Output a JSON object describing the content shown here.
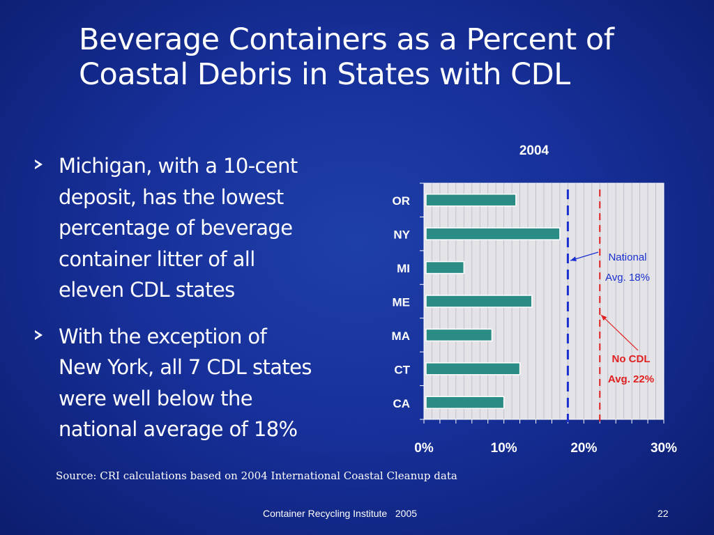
{
  "slide": {
    "title_lines": [
      "Beverage Containers as a Percent of",
      "Coastal Debris in States with CDL"
    ],
    "bullets": [
      {
        "lines": [
          "Michigan, with a 10-cent",
          "deposit, has the lowest",
          "percentage of beverage",
          "container litter of all",
          "eleven CDL states"
        ]
      },
      {
        "lines": [
          "With the exception of",
          "New York, all 7 CDL states",
          "were well below the",
          "national average of 18%"
        ]
      }
    ],
    "source": "Source: CRI calculations based on 2004 International Coastal Cleanup data",
    "footer": "Container Recycling Institute   2005",
    "page_number": "22"
  },
  "colors": {
    "bar_fill": "#2b8c86",
    "plot_bg": "#e3e3e8",
    "national_line": "#1a2fd0",
    "no_cdl_line": "#e02020",
    "national_text": "#1a2fd0",
    "no_cdl_text": "#e02020",
    "axis_text": "#ffffff"
  },
  "chart_data": {
    "type": "bar",
    "orientation": "horizontal",
    "title": "2004",
    "categories": [
      "OR",
      "NY",
      "MI",
      "ME",
      "MA",
      "CT",
      "CA"
    ],
    "values": [
      11.5,
      17,
      5,
      13.5,
      8.5,
      12,
      10
    ],
    "xlim": [
      0,
      30
    ],
    "x_ticks": [
      "0%",
      "10%",
      "20%",
      "30%"
    ],
    "x_tick_values": [
      0,
      10,
      20,
      30
    ],
    "grid": true,
    "reference_lines": [
      {
        "label_lines": [
          "National",
          "Avg. 18%"
        ],
        "value": 18,
        "style": "dashed"
      },
      {
        "label_lines": [
          "No CDL",
          "Avg. 22%"
        ],
        "value": 22,
        "style": "dashed"
      }
    ]
  }
}
